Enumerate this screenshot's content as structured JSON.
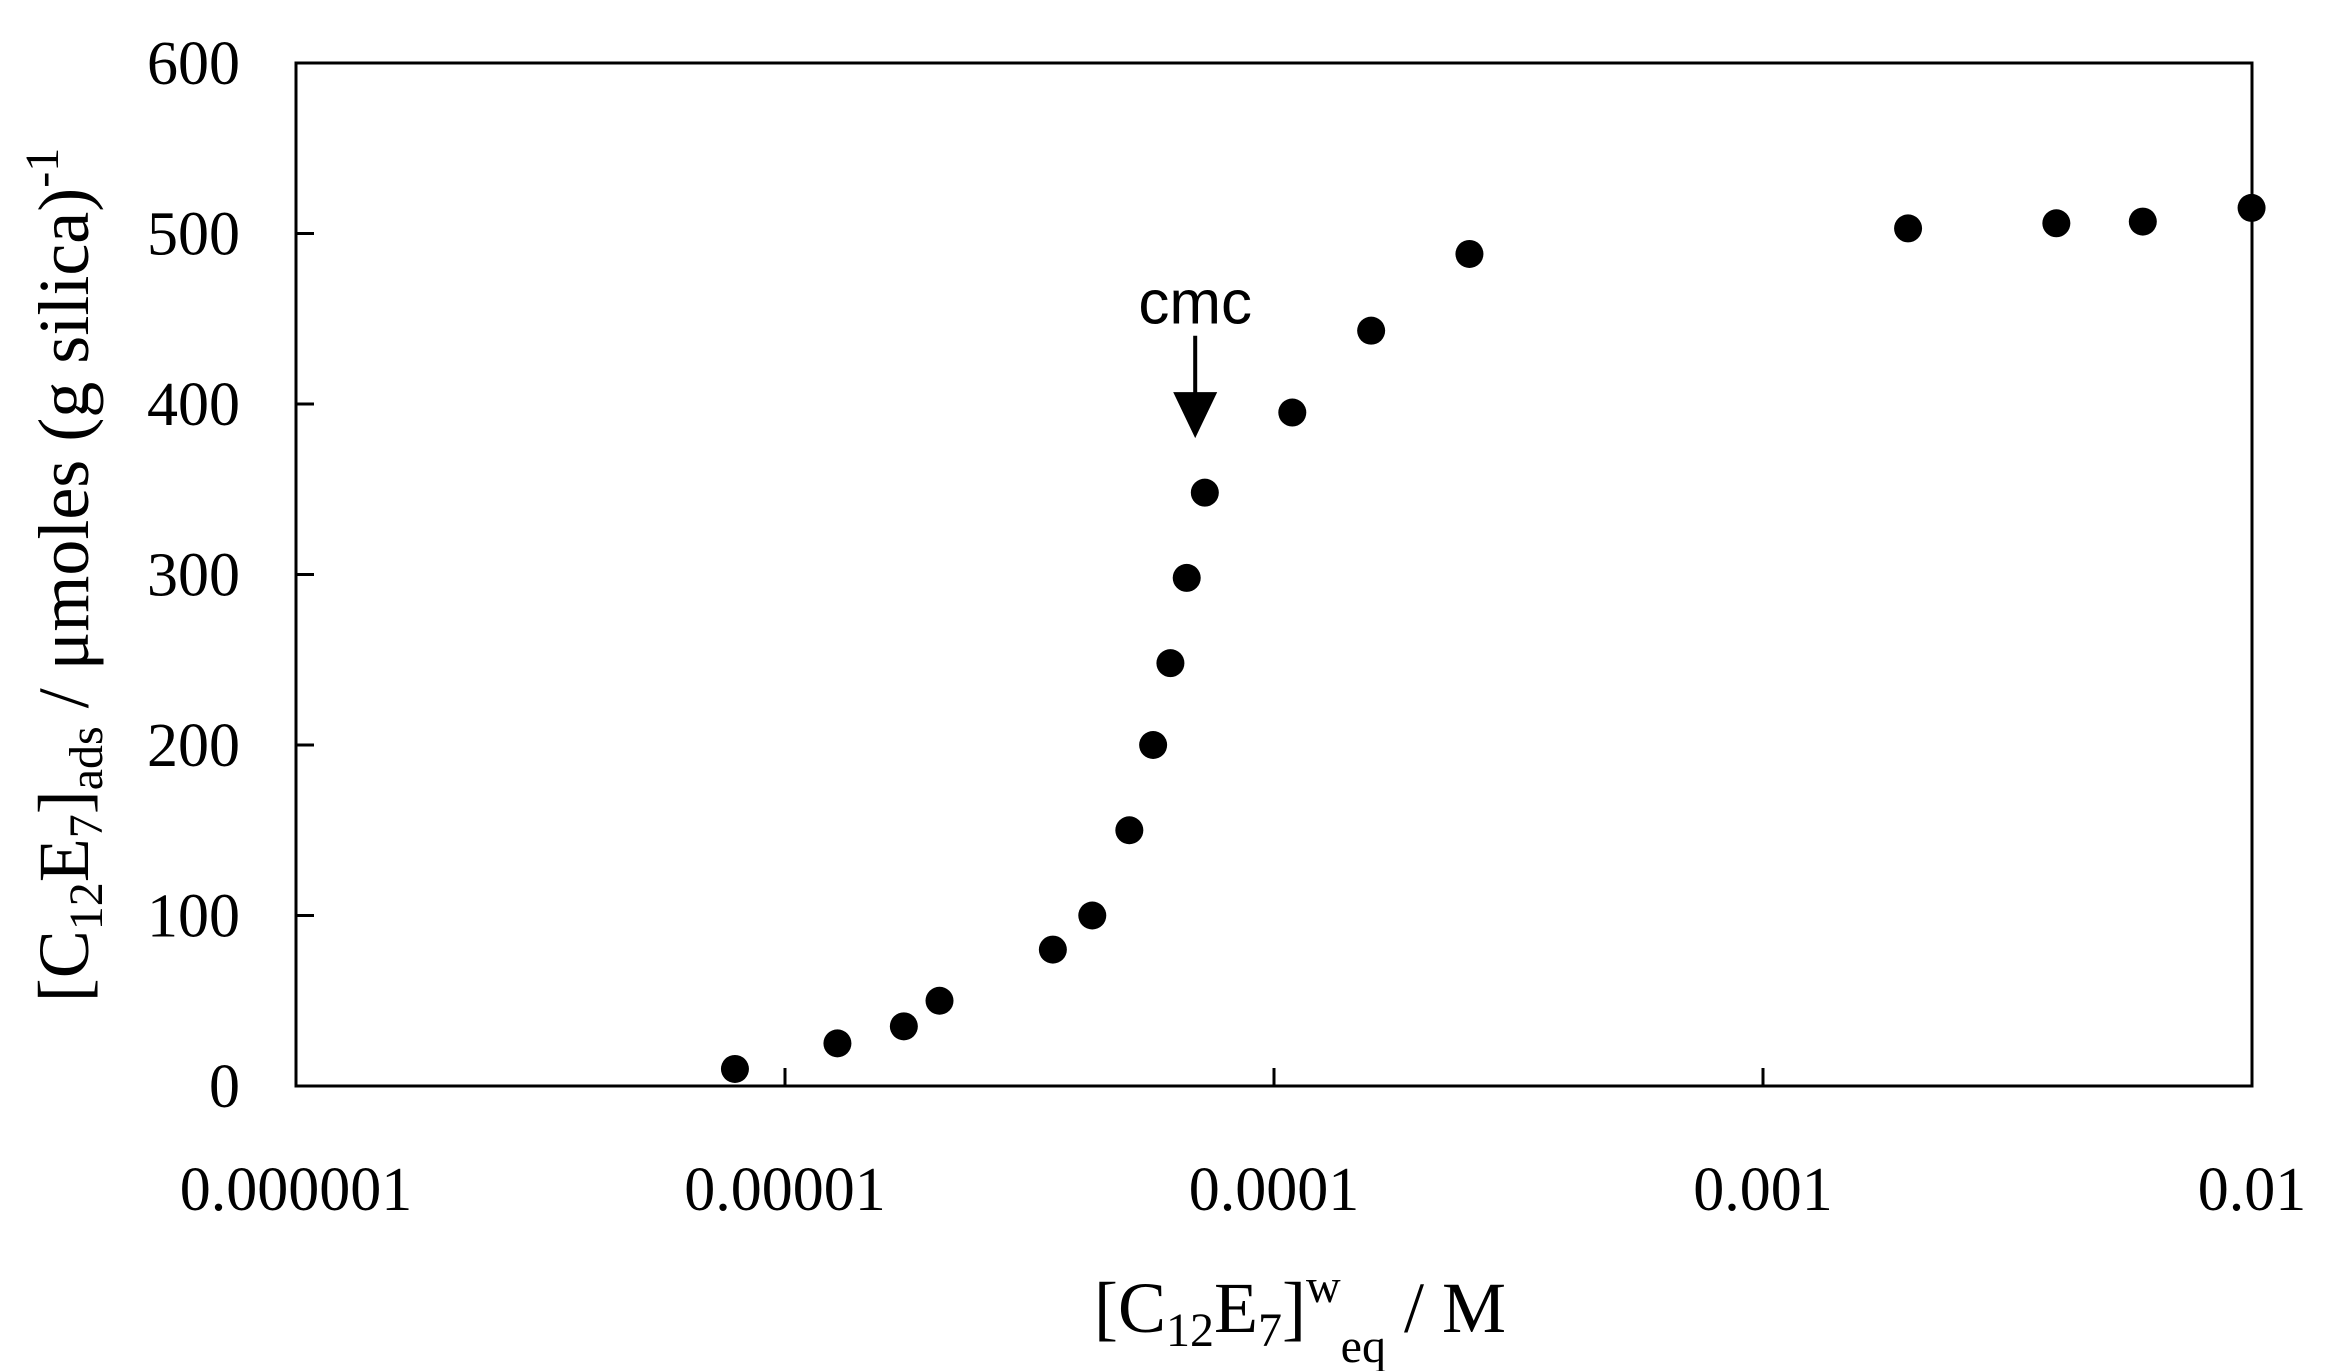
{
  "chart_data": {
    "type": "scatter",
    "title": "",
    "xscale": "log",
    "xlim": [
      1e-06,
      0.01
    ],
    "ylim": [
      0,
      600
    ],
    "grid": false,
    "legend": "none",
    "marker_color": "#000000",
    "xlabel": {
      "open": "[C",
      "sub1": "12",
      "mid": "E",
      "sub2": "7",
      "close": "]",
      "sup": "w",
      "sub3": "eq",
      "unit": " / M"
    },
    "ylabel": {
      "open": "[C",
      "sub1": "12",
      "mid": "E",
      "sub2": "7",
      "close": "]",
      "sub3": "ads",
      "unit": " / μmoles (g silica)",
      "sup": "-1"
    },
    "xticks": [
      {
        "value": 1e-06,
        "label": "0.000001"
      },
      {
        "value": 1e-05,
        "label": "0.00001"
      },
      {
        "value": 0.0001,
        "label": "0.0001"
      },
      {
        "value": 0.001,
        "label": "0.001"
      },
      {
        "value": 0.01,
        "label": "0.01"
      }
    ],
    "yticks": [
      {
        "value": 0,
        "label": "0"
      },
      {
        "value": 100,
        "label": "100"
      },
      {
        "value": 200,
        "label": "200"
      },
      {
        "value": 300,
        "label": "300"
      },
      {
        "value": 400,
        "label": "400"
      },
      {
        "value": 500,
        "label": "500"
      },
      {
        "value": 600,
        "label": "600"
      }
    ],
    "points": [
      {
        "x": 7.9e-06,
        "y": 10
      },
      {
        "x": 1.28e-05,
        "y": 25
      },
      {
        "x": 1.75e-05,
        "y": 35
      },
      {
        "x": 2.07e-05,
        "y": 50
      },
      {
        "x": 3.53e-05,
        "y": 80
      },
      {
        "x": 4.25e-05,
        "y": 100
      },
      {
        "x": 5.06e-05,
        "y": 150
      },
      {
        "x": 5.66e-05,
        "y": 200
      },
      {
        "x": 6.14e-05,
        "y": 248
      },
      {
        "x": 6.63e-05,
        "y": 298
      },
      {
        "x": 7.22e-05,
        "y": 348
      },
      {
        "x": 0.000109,
        "y": 395
      },
      {
        "x": 0.000158,
        "y": 443
      },
      {
        "x": 0.000251,
        "y": 488
      },
      {
        "x": 0.00198,
        "y": 503
      },
      {
        "x": 0.00398,
        "y": 506
      },
      {
        "x": 0.00598,
        "y": 507
      },
      {
        "x": 0.00998,
        "y": 515
      }
    ],
    "annotations": [
      {
        "text": "cmc",
        "x": 6.9e-05,
        "y_text": 460,
        "arrow_from": 440,
        "arrow_to": 380
      }
    ]
  }
}
